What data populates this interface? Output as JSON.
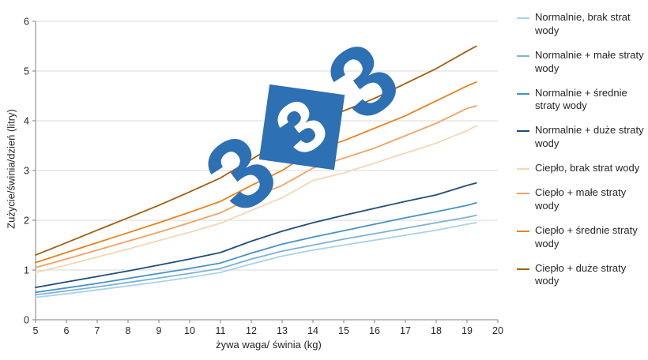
{
  "watermark": [
    "3",
    "3",
    "3"
  ],
  "chart_data": {
    "type": "line",
    "title": "",
    "xlabel": "żywa waga/ świnia (kg)",
    "ylabel": "Zużycie/świnia/dzień (litry)",
    "xlim": [
      5,
      20
    ],
    "ylim": [
      0,
      6
    ],
    "x_ticks": [
      5,
      6,
      7,
      8,
      9,
      10,
      11,
      12,
      13,
      14,
      15,
      16,
      17,
      18,
      19,
      20
    ],
    "y_ticks": [
      0,
      1,
      2,
      3,
      4,
      5,
      6
    ],
    "grid": "horizontal",
    "legend_position": "right",
    "x": [
      5,
      6,
      7,
      8,
      9,
      10,
      11,
      12,
      13,
      14,
      15,
      16,
      17,
      18,
      19,
      19.3
    ],
    "series": [
      {
        "name": "Normalnie, brak strat wody",
        "color": "#a9d2e8",
        "values": [
          0.45,
          0.52,
          0.6,
          0.68,
          0.76,
          0.85,
          0.95,
          1.12,
          1.28,
          1.4,
          1.5,
          1.6,
          1.7,
          1.8,
          1.92,
          1.95
        ]
      },
      {
        "name": "Normalnie + małe straty wody",
        "color": "#7eb2d5",
        "values": [
          0.5,
          0.58,
          0.66,
          0.75,
          0.84,
          0.93,
          1.03,
          1.22,
          1.38,
          1.5,
          1.62,
          1.73,
          1.84,
          1.95,
          2.06,
          2.1
        ]
      },
      {
        "name": "Normalnie + średnie straty wody",
        "color": "#4793c4",
        "values": [
          0.55,
          0.64,
          0.73,
          0.83,
          0.93,
          1.03,
          1.14,
          1.34,
          1.52,
          1.66,
          1.79,
          1.92,
          2.05,
          2.17,
          2.3,
          2.35
        ]
      },
      {
        "name": "Normalnie + duże straty wody",
        "color": "#1f4e79",
        "values": [
          0.65,
          0.76,
          0.87,
          0.98,
          1.1,
          1.22,
          1.35,
          1.58,
          1.78,
          1.95,
          2.1,
          2.24,
          2.38,
          2.51,
          2.7,
          2.75
        ]
      },
      {
        "name": "Ciepło, brak strat wody",
        "color": "#f4d6b5",
        "values": [
          0.95,
          1.1,
          1.26,
          1.42,
          1.59,
          1.76,
          1.94,
          2.2,
          2.45,
          2.8,
          2.95,
          3.15,
          3.35,
          3.55,
          3.8,
          3.9
        ]
      },
      {
        "name": "Ciepło + małe straty wody",
        "color": "#f2a263",
        "values": [
          1.05,
          1.22,
          1.4,
          1.58,
          1.76,
          1.95,
          2.15,
          2.45,
          2.7,
          3.05,
          3.25,
          3.45,
          3.7,
          3.95,
          4.25,
          4.3
        ]
      },
      {
        "name": "Ciepło + średnie straty wody",
        "color": "#e8821e",
        "values": [
          1.15,
          1.35,
          1.55,
          1.75,
          1.95,
          2.16,
          2.38,
          2.7,
          3.0,
          3.4,
          3.6,
          3.85,
          4.1,
          4.4,
          4.7,
          4.78
        ]
      },
      {
        "name": "Ciepło + duże straty wody",
        "color": "#a05e10",
        "values": [
          1.3,
          1.55,
          1.8,
          2.05,
          2.3,
          2.57,
          2.85,
          3.22,
          3.6,
          3.98,
          4.2,
          4.45,
          4.75,
          5.05,
          5.4,
          5.5
        ]
      }
    ]
  }
}
